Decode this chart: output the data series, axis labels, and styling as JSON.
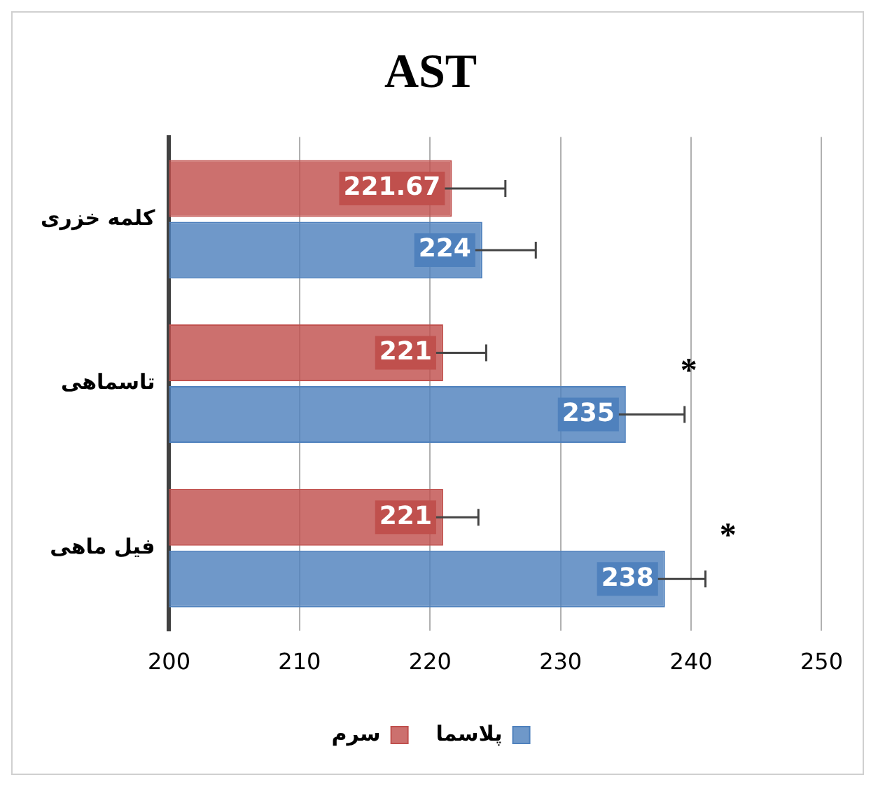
{
  "chart_data": {
    "type": "bar",
    "orientation": "horizontal",
    "title": "AST",
    "categories": [
      "کلمه خزری",
      "تاسماهی",
      "فیل ماهی"
    ],
    "series": [
      {
        "name": "سرم",
        "color": "#c0504d",
        "values": [
          221.67,
          221,
          221
        ],
        "errors": [
          4.1,
          3.3,
          2.7
        ]
      },
      {
        "name": "پلاسما",
        "color": "#4f81bd",
        "values": [
          224,
          235,
          238
        ],
        "errors": [
          4.1,
          4.5,
          3.1
        ]
      }
    ],
    "xlim": [
      200,
      250
    ],
    "xticks": [
      200,
      210,
      220,
      230,
      240,
      250
    ],
    "grid": "x",
    "legend": "bottom",
    "data_labels": true,
    "annotations": [
      {
        "text": "*",
        "x": 235,
        "y": "تاسماهی"
      },
      {
        "text": "*",
        "x": 238,
        "y": "فیل ماهی"
      }
    ]
  }
}
